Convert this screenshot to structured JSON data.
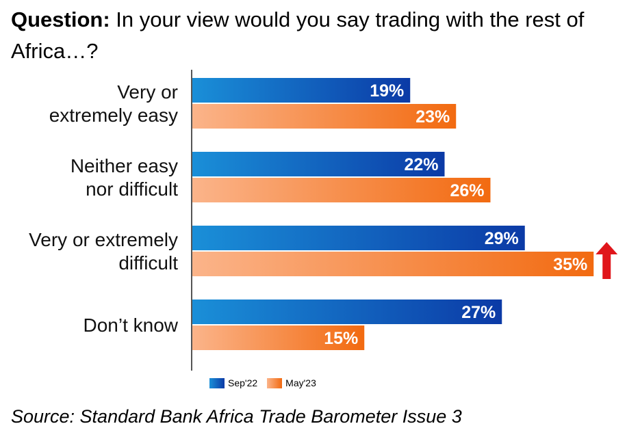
{
  "question": {
    "label": "Question:",
    "text": " In your view would you say trading with the rest of Africa…?"
  },
  "source": "Source: Standard Bank Africa Trade Barometer Issue 3",
  "colors": {
    "sep22_start": "#1a8fd8",
    "sep22_end": "#0b3aa6",
    "may23_start": "#fbb48a",
    "may23_end": "#f26a10",
    "arrow": "#e0161b",
    "axis": "#555555"
  },
  "chart_data": {
    "type": "bar",
    "orientation": "horizontal",
    "categories": [
      [
        "Very or",
        "extremely easy"
      ],
      [
        "Neither easy",
        "nor difficult"
      ],
      [
        "Very or extremely",
        "difficult"
      ],
      [
        "Don’t know"
      ]
    ],
    "series": [
      {
        "name": "Sep'22",
        "values": [
          19,
          22,
          29,
          27
        ],
        "labels": [
          "19%",
          "22%",
          "29%",
          "27%"
        ]
      },
      {
        "name": "May'23",
        "values": [
          23,
          26,
          35,
          15
        ],
        "labels": [
          "23%",
          "26%",
          "35%",
          "15%"
        ]
      }
    ],
    "annotations": [
      {
        "category_index": 2,
        "series": "May'23",
        "marker": "up-arrow"
      }
    ],
    "legend_position": "bottom",
    "grid": false
  }
}
